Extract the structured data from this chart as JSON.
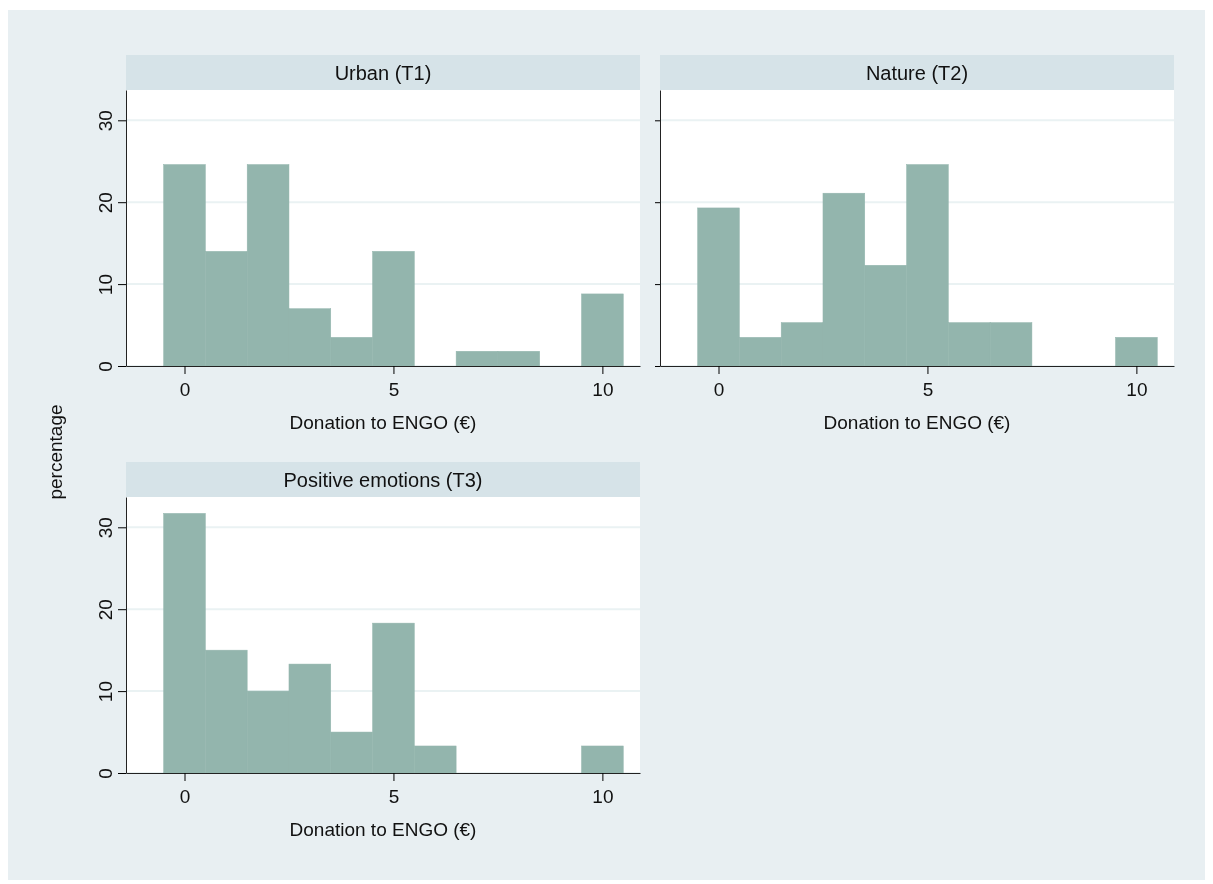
{
  "chart_data": [
    {
      "type": "histogram",
      "title": "Urban (T1)",
      "xlabel": "Donation to ENGO (€)",
      "ylabel": "percentage",
      "bins": [
        -0.5,
        0.5,
        1.5,
        2.5,
        3.5,
        4.5,
        5.5,
        6.5,
        7.5,
        8.5,
        9.5,
        10.5
      ],
      "values": [
        24.6,
        14,
        24.6,
        7,
        3.5,
        14,
        0,
        1.8,
        1.8,
        0,
        8.8
      ],
      "color": "#93b5ad",
      "xlim": [
        -1.4,
        10.9
      ],
      "xticks": [
        0,
        5,
        10
      ],
      "ylim": [
        0,
        33.7
      ],
      "yticks": [
        0,
        10,
        20,
        30
      ],
      "grid": "y"
    },
    {
      "type": "histogram",
      "title": "Nature (T2)",
      "xlabel": "Donation to ENGO (€)",
      "bins": [
        -0.5,
        0.5,
        1.5,
        2.5,
        3.5,
        4.5,
        5.5,
        6.5,
        7.5,
        8.5,
        9.5,
        10.5
      ],
      "values": [
        19.3,
        3.5,
        5.3,
        21.1,
        12.3,
        24.6,
        5.3,
        5.3,
        0,
        0,
        3.5
      ],
      "color": "#93b5ad",
      "xlim": [
        -1.4,
        10.9
      ],
      "xticks": [
        0,
        5,
        10
      ],
      "ylim": [
        0,
        33.7
      ],
      "yticks": [
        0,
        10,
        20,
        30
      ],
      "grid": "y",
      "tick_labels": "x"
    },
    {
      "type": "histogram",
      "title": "Positive emotions (T3)",
      "xlabel": "Donation to ENGO (€)",
      "bins": [
        -0.5,
        0.5,
        1.5,
        2.5,
        3.5,
        4.5,
        5.5,
        6.5,
        7.5,
        8.5,
        9.5,
        10.5
      ],
      "values": [
        31.7,
        15,
        10,
        13.3,
        5,
        18.3,
        3.3,
        0,
        0,
        0,
        3.3
      ],
      "color": "#93b5ad",
      "xlim": [
        -1.4,
        10.9
      ],
      "xticks": [
        0,
        5,
        10
      ],
      "ylim": [
        0,
        33.7
      ],
      "yticks": [
        0,
        10,
        20,
        30
      ],
      "grid": "y"
    }
  ]
}
